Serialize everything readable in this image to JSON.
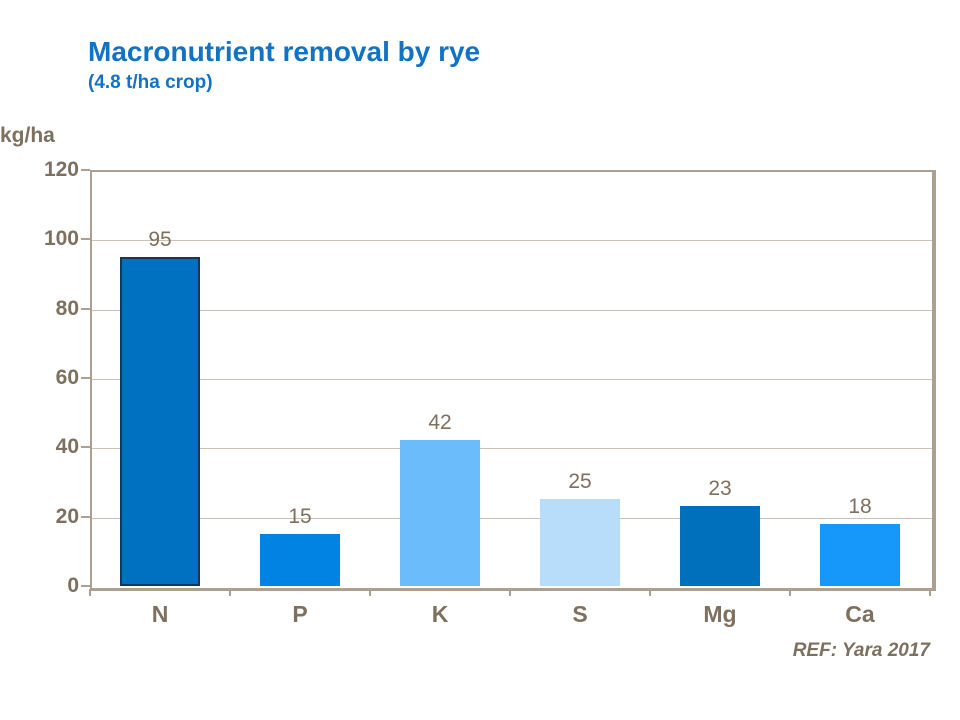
{
  "chart_data": {
    "type": "bar",
    "title": "Macronutrient removal by rye",
    "subtitle": "(4.8 t/ha crop)",
    "ylabel": "kg/ha",
    "categories": [
      "N",
      "P",
      "K",
      "S",
      "Mg",
      "Ca"
    ],
    "values": [
      95,
      15,
      42,
      25,
      23,
      18
    ],
    "bar_colors": [
      "#0070c0",
      "#0083e3",
      "#6abcfb",
      "#b7ddfb",
      "#006fbc",
      "#1697fa"
    ],
    "bar_borders": [
      "#16365c",
      "none",
      "none",
      "none",
      "none",
      "none"
    ],
    "ylim": [
      0,
      120
    ],
    "yticks": [
      0,
      20,
      40,
      60,
      80,
      100,
      120
    ],
    "grid": true,
    "legend": false,
    "ref": "REF: Yara 2017",
    "colors": {
      "title": "#1272c3",
      "axis_text": "#7d705e",
      "frame": "#aca092",
      "gridline": "#cdc3b5",
      "background": "#ffffff"
    }
  }
}
